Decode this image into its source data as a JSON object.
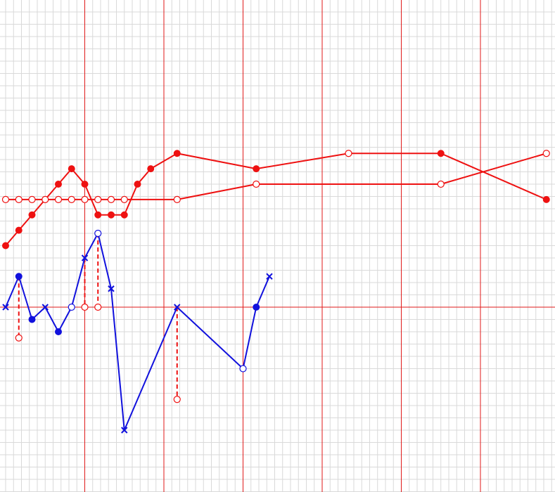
{
  "colors": {
    "background": "#ffffff",
    "grid_minor": "#d9d9d9",
    "grid_major": "#e01a1a",
    "red_series": "#ee1111",
    "blue_series": "#1111dd",
    "drop_line": "#ee1111"
  },
  "chart_data": {
    "type": "line",
    "title": "",
    "xlabel": "",
    "ylabel": "",
    "grid": true,
    "legend": "none",
    "axis_labels_shown": false,
    "xlim": [
      0,
      105
    ],
    "ylim": [
      -15,
      25
    ],
    "x_major_every": 15,
    "x_minor_every": 1.5,
    "y_minor_every": 1,
    "reference_line_y": 0,
    "series": [
      {
        "color": "#ee1111",
        "marker_default": "filled-circle",
        "points": [
          {
            "x": 0,
            "y": 5
          },
          {
            "x": 2.5,
            "y": 6.25
          },
          {
            "x": 5,
            "y": 7.5
          },
          {
            "x": 7.5,
            "y": 8.75
          },
          {
            "x": 10,
            "y": 10
          },
          {
            "x": 12.5,
            "y": 11.25
          },
          {
            "x": 15,
            "y": 10
          },
          {
            "x": 17.5,
            "y": 7.5
          },
          {
            "x": 20,
            "y": 7.5
          },
          {
            "x": 22.5,
            "y": 7.5
          },
          {
            "x": 25,
            "y": 10
          },
          {
            "x": 27.5,
            "y": 11.25
          },
          {
            "x": 32.5,
            "y": 12.5
          },
          {
            "x": 47.5,
            "y": 11.25
          },
          {
            "x": 65,
            "y": 12.5,
            "marker": "open-circle"
          },
          {
            "x": 82.5,
            "y": 12.5
          },
          {
            "x": 102.5,
            "y": 8.75
          }
        ]
      },
      {
        "color": "#ee1111",
        "marker_default": "open-circle",
        "points": [
          {
            "x": 0,
            "y": 8.75
          },
          {
            "x": 2.5,
            "y": 8.75
          },
          {
            "x": 5,
            "y": 8.75
          },
          {
            "x": 7.5,
            "y": 8.75
          },
          {
            "x": 10,
            "y": 8.75
          },
          {
            "x": 12.5,
            "y": 8.75
          },
          {
            "x": 15,
            "y": 8.75
          },
          {
            "x": 17.5,
            "y": 8.75
          },
          {
            "x": 20,
            "y": 8.75
          },
          {
            "x": 22.5,
            "y": 8.75
          },
          {
            "x": 32.5,
            "y": 8.75
          },
          {
            "x": 47.5,
            "y": 10
          },
          {
            "x": 82.5,
            "y": 10
          },
          {
            "x": 102.5,
            "y": 12.5
          }
        ]
      },
      {
        "color": "#1111dd",
        "marker_default": "cross",
        "points": [
          {
            "x": 0,
            "y": 0,
            "marker": "cross"
          },
          {
            "x": 2.5,
            "y": 2.5,
            "marker": "filled-circle"
          },
          {
            "x": 5,
            "y": -1,
            "marker": "filled-circle"
          },
          {
            "x": 7.5,
            "y": 0,
            "marker": "cross"
          },
          {
            "x": 10,
            "y": -2,
            "marker": "filled-circle"
          },
          {
            "x": 12.5,
            "y": 0,
            "marker": "open-circle"
          },
          {
            "x": 15,
            "y": 4,
            "marker": "cross"
          },
          {
            "x": 17.5,
            "y": 6,
            "marker": "open-circle"
          },
          {
            "x": 20,
            "y": 1.5,
            "marker": "cross"
          },
          {
            "x": 22.5,
            "y": -10,
            "marker": "cross"
          },
          {
            "x": 32.5,
            "y": 0,
            "marker": "cross"
          },
          {
            "x": 45,
            "y": -5,
            "marker": "open-circle"
          },
          {
            "x": 47.5,
            "y": 0,
            "marker": "filled-circle"
          },
          {
            "x": 50,
            "y": 2.5,
            "marker": "cross"
          }
        ]
      }
    ],
    "drop_lines": [
      {
        "x": 2.5,
        "y_from": 2.5,
        "y_to": -2.5
      },
      {
        "x": 15,
        "y_from": 4,
        "y_to": 0
      },
      {
        "x": 17.5,
        "y_from": 6,
        "y_to": 0
      },
      {
        "x": 32.5,
        "y_from": 0,
        "y_to": -7.5
      }
    ]
  }
}
